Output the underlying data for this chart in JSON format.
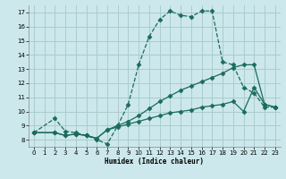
{
  "xlabel": "Humidex (Indice chaleur)",
  "bg_color": "#cce8ec",
  "grid_color": "#aacccc",
  "line_color": "#1a6b5a",
  "xlim": [
    -0.5,
    23.5
  ],
  "ylim": [
    7.5,
    17.5
  ],
  "xticks": [
    0,
    1,
    2,
    3,
    4,
    5,
    6,
    7,
    8,
    9,
    10,
    11,
    12,
    13,
    14,
    15,
    16,
    17,
    18,
    19,
    20,
    21,
    22,
    23
  ],
  "yticks": [
    8,
    9,
    10,
    11,
    12,
    13,
    14,
    15,
    16,
    17
  ],
  "series": [
    {
      "x": [
        0,
        2,
        3,
        4,
        5,
        6,
        7,
        8,
        9,
        10,
        11,
        12,
        13,
        14,
        15,
        16,
        17,
        18,
        19,
        20,
        21,
        22,
        23
      ],
      "y": [
        8.5,
        9.5,
        8.6,
        8.5,
        8.3,
        8.0,
        7.7,
        9.0,
        10.5,
        13.3,
        15.3,
        16.5,
        17.1,
        16.8,
        16.7,
        17.1,
        17.1,
        13.5,
        13.3,
        11.7,
        11.3,
        10.3,
        10.3
      ],
      "linestyle": "--",
      "marker": "D",
      "markersize": 2.5
    },
    {
      "x": [
        0,
        2,
        3,
        4,
        5,
        6,
        7,
        8,
        9,
        10,
        11,
        12,
        13,
        14,
        15,
        16,
        17,
        18,
        19,
        20,
        21,
        22,
        23
      ],
      "y": [
        8.5,
        8.5,
        8.3,
        8.4,
        8.3,
        8.1,
        8.7,
        9.0,
        9.3,
        9.7,
        10.2,
        10.7,
        11.1,
        11.5,
        11.8,
        12.1,
        12.4,
        12.7,
        13.1,
        13.3,
        13.3,
        10.5,
        10.3
      ],
      "linestyle": "-",
      "marker": "D",
      "markersize": 2.5
    },
    {
      "x": [
        0,
        2,
        3,
        4,
        5,
        6,
        7,
        8,
        9,
        10,
        11,
        12,
        13,
        14,
        15,
        16,
        17,
        18,
        19,
        20,
        21,
        22,
        23
      ],
      "y": [
        8.5,
        8.5,
        8.3,
        8.4,
        8.3,
        8.1,
        8.7,
        8.9,
        9.1,
        9.3,
        9.5,
        9.7,
        9.9,
        10.0,
        10.1,
        10.3,
        10.4,
        10.5,
        10.7,
        10.0,
        11.7,
        10.5,
        10.3
      ],
      "linestyle": "-",
      "marker": "D",
      "markersize": 2.5
    }
  ]
}
